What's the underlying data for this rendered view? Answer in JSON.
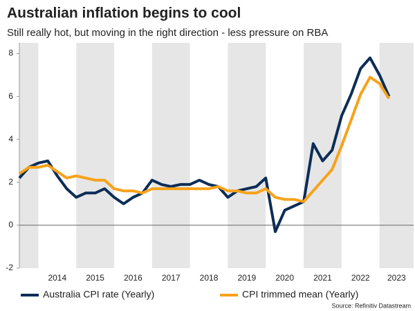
{
  "chart_data": {
    "type": "line",
    "title": "Australian inflation begins to cool",
    "subtitle": "Still really hot, but moving in the right direction - less pressure on RBA",
    "source": "Source: Refinitiv Datastream",
    "x": [
      2013.5,
      2013.75,
      2014,
      2014.25,
      2014.5,
      2014.75,
      2015,
      2015.25,
      2015.5,
      2015.75,
      2016,
      2016.25,
      2016.5,
      2016.75,
      2017,
      2017.25,
      2017.5,
      2017.75,
      2018,
      2018.25,
      2018.5,
      2018.75,
      2019,
      2019.25,
      2019.5,
      2019.75,
      2020,
      2020.25,
      2020.5,
      2020.75,
      2021,
      2021.25,
      2021.5,
      2021.75,
      2022,
      2022.25,
      2022.5,
      2022.75,
      2023,
      2023.25
    ],
    "series": [
      {
        "name": "Australia CPI rate (Yearly)",
        "color": "#0c2d57",
        "values": [
          2.2,
          2.7,
          2.9,
          3.0,
          2.3,
          1.7,
          1.3,
          1.5,
          1.5,
          1.7,
          1.3,
          1.0,
          1.3,
          1.5,
          2.1,
          1.9,
          1.8,
          1.9,
          1.9,
          2.1,
          1.9,
          1.8,
          1.3,
          1.6,
          1.7,
          1.8,
          2.2,
          -0.3,
          0.7,
          0.9,
          1.1,
          3.8,
          3.0,
          3.5,
          5.1,
          6.1,
          7.3,
          7.8,
          7.0,
          6.0
        ]
      },
      {
        "name": "CPI trimmed mean (Yearly)",
        "color": "#f7a21b",
        "values": [
          2.4,
          2.7,
          2.7,
          2.8,
          2.5,
          2.2,
          2.3,
          2.2,
          2.1,
          2.1,
          1.7,
          1.6,
          1.6,
          1.5,
          1.7,
          1.7,
          1.7,
          1.7,
          1.7,
          1.7,
          1.7,
          1.8,
          1.6,
          1.6,
          1.5,
          1.5,
          1.7,
          1.3,
          1.2,
          1.2,
          1.1,
          1.6,
          2.1,
          2.6,
          3.7,
          4.9,
          6.1,
          6.9,
          6.6,
          5.9
        ]
      }
    ],
    "xlim": [
      2013.5,
      2023.9
    ],
    "xticks": [
      2014,
      2015,
      2016,
      2017,
      2018,
      2019,
      2020,
      2021,
      2022,
      2023
    ],
    "ylim": [
      -2,
      8.5
    ],
    "yticks": [
      -2,
      0,
      2,
      4,
      6,
      8
    ],
    "shade_color": "#e6e6e6"
  }
}
